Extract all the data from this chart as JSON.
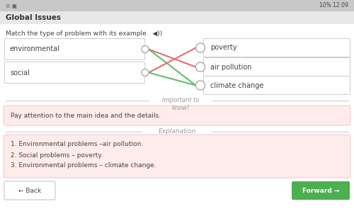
{
  "title": "Global Issues",
  "status_bar_text": "10% 12:09",
  "instruction": "Match the type of problem with its example.",
  "left_items": [
    "environmental",
    "social"
  ],
  "right_items": [
    "poverty",
    "air pollution",
    "climate change"
  ],
  "line_colors": [
    "#e07070",
    "#66bb6a",
    "#e07070",
    "#66bb6a"
  ],
  "important_label": "Important to\nknow!",
  "important_text": "Pay attention to the main idea and the details.",
  "explanation_label": "Explanation",
  "explanation_lines": [
    "1. Environmental problems –air pollution.",
    "2. Social problems – poverty.",
    "3. Environmental problems – climate change."
  ],
  "back_btn": "Back",
  "forward_btn": "Forward",
  "bg_color": "#f0f0f0",
  "white": "#ffffff",
  "pink_bg": "#fdecea",
  "status_bg": "#c8c8c8",
  "title_bg": "#e8e8e8",
  "green_btn": "#4caf50",
  "text_dark": "#444444",
  "text_gray": "#999999",
  "border_color": "#cccccc",
  "circle_stroke": "#aaaaaa",
  "divider_color": "#d0d0d0"
}
